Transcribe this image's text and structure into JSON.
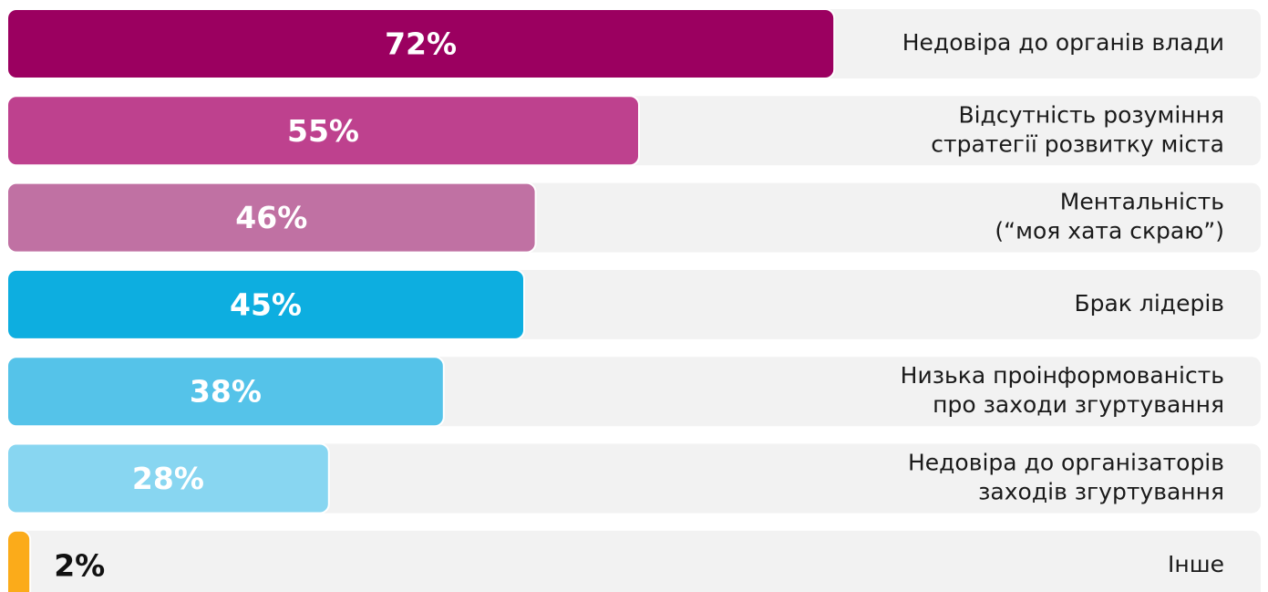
{
  "chart_data": {
    "type": "bar",
    "categories": [
      [
        "Недовіра до органів влади"
      ],
      [
        "Відсутність розуміння",
        "стратегії розвитку міста"
      ],
      [
        "Ментальність",
        "(“моя хата скраю”)"
      ],
      [
        "Брак лідерів"
      ],
      [
        "Низька проінформованість",
        "про заходи згуртування"
      ],
      [
        "Недовіра до організаторів",
        "заходів згуртування"
      ],
      [
        "Інше"
      ]
    ],
    "values": [
      72,
      55,
      46,
      45,
      38,
      28,
      2
    ],
    "value_labels": [
      "72%",
      "55%",
      "46%",
      "45%",
      "38%",
      "28%",
      "2%"
    ],
    "colors": [
      "#9b0060",
      "#be418e",
      "#c071a3",
      "#0daee0",
      "#55c3e9",
      "#88d6f1",
      "#fbab1a"
    ]
  }
}
